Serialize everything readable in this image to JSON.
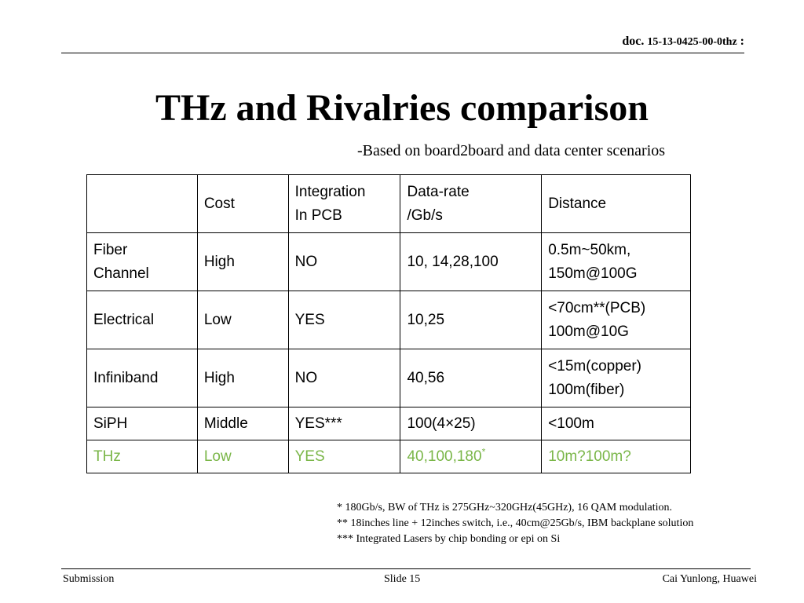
{
  "header": {
    "doc_prefix": "doc.",
    "doc_number": "15-13-0425-00-0thz",
    "doc_suffix": ":"
  },
  "title": "THz and Rivalries comparison",
  "subtitle": "-Based on board2board and data center scenarios",
  "table": {
    "header": {
      "c0": [
        ""
      ],
      "c1": [
        "Cost"
      ],
      "c2": [
        "Integration",
        "In PCB"
      ],
      "c3": [
        "Data-rate",
        "/Gb/s"
      ],
      "c4": [
        "Distance"
      ]
    },
    "rows": [
      {
        "technology": [
          "Fiber",
          "Channel"
        ],
        "cost": "High",
        "integration": "NO",
        "data_rate": "10, 14,28,100",
        "distance": [
          "0.5m~50km,",
          "150m@100G"
        ]
      },
      {
        "technology": [
          "Electrical"
        ],
        "cost": "Low",
        "integration": "YES",
        "data_rate": "10,25",
        "distance": [
          "<70cm**(PCB)",
          "100m@10G"
        ]
      },
      {
        "technology": [
          "Infiniband"
        ],
        "cost": "High",
        "integration": "NO",
        "data_rate": "40,56",
        "distance": [
          "<15m(copper)",
          "100m(fiber)"
        ]
      },
      {
        "technology": [
          "SiPH"
        ],
        "cost": "Middle",
        "integration": "YES***",
        "data_rate": "100(4×25)",
        "distance": [
          "<100m"
        ]
      },
      {
        "technology": [
          "THz"
        ],
        "cost": "Low",
        "integration": "YES",
        "data_rate": "40,100,180",
        "data_rate_mark": "*",
        "distance": [
          "10m?100m?"
        ],
        "highlight_color": "#7ab648"
      }
    ]
  },
  "footnotes": [
    "* 180Gb/s, BW of THz is 275GHz~320GHz(45GHz), 16 QAM modulation.",
    "** 18inches line + 12inches  switch, i.e., 40cm@25Gb/s, IBM backplane solution",
    "*** Integrated Lasers by chip bonding or epi on Si"
  ],
  "footer": {
    "left": "Submission",
    "center": "Slide 15",
    "right": "Cai Yunlong, Huawei"
  }
}
